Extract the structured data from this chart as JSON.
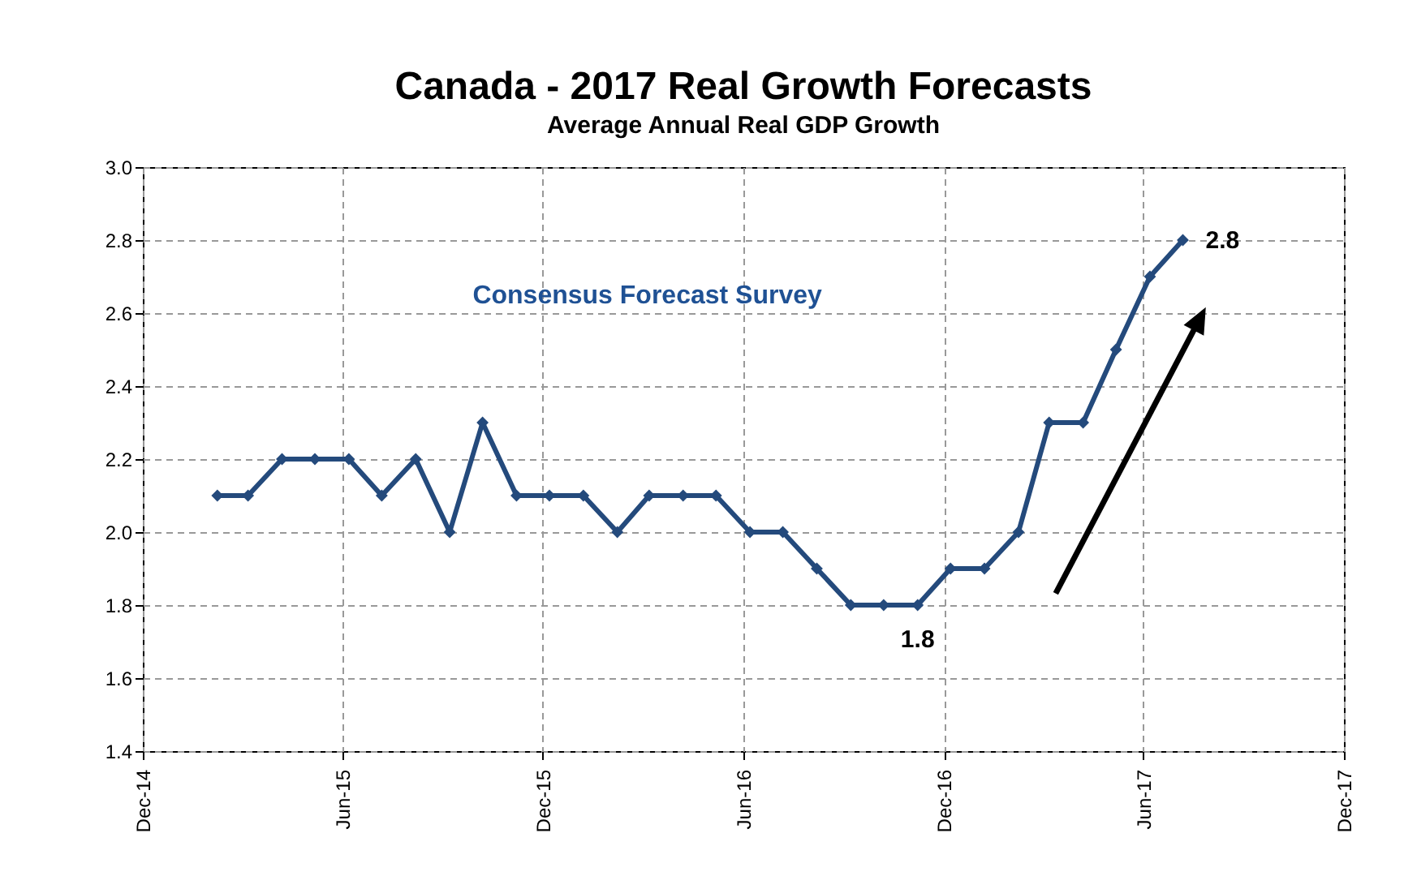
{
  "chart_data": {
    "type": "line",
    "title": "Canada - 2017 Real Growth Forecasts",
    "subtitle": "Average Annual Real GDP Growth",
    "x": [
      "2015-02-07",
      "2015-03-07",
      "2015-04-07",
      "2015-05-07",
      "2015-06-07",
      "2015-07-07",
      "2015-08-07",
      "2015-09-07",
      "2015-10-07",
      "2015-11-07",
      "2015-12-07",
      "2016-01-07",
      "2016-02-07",
      "2016-03-07",
      "2016-04-07",
      "2016-05-07",
      "2016-06-07",
      "2016-07-07",
      "2016-08-07",
      "2016-09-07",
      "2016-10-07",
      "2016-11-07",
      "2016-12-07",
      "2017-01-07",
      "2017-02-07",
      "2017-03-07",
      "2017-04-07",
      "2017-05-07",
      "2017-06-07",
      "2017-07-07"
    ],
    "series": [
      {
        "color": "#244a7c",
        "values": [
          2.1,
          2.1,
          2.2,
          2.2,
          2.2,
          2.1,
          2.2,
          2.0,
          2.3,
          2.1,
          2.1,
          2.1,
          2.0,
          2.1,
          2.1,
          2.1,
          2.0,
          2.0,
          1.9,
          1.8,
          1.8,
          1.8,
          1.9,
          1.9,
          2.0,
          2.3,
          2.3,
          2.5,
          2.7,
          2.8
        ]
      }
    ],
    "xlim": [
      "2014-12-01",
      "2017-12-01"
    ],
    "xticks": [
      {
        "value": "2014-12-01",
        "label": "Dec-14"
      },
      {
        "value": "2015-06-01",
        "label": "Jun-15"
      },
      {
        "value": "2015-12-01",
        "label": "Dec-15"
      },
      {
        "value": "2016-06-01",
        "label": "Jun-16"
      },
      {
        "value": "2016-12-01",
        "label": "Dec-16"
      },
      {
        "value": "2017-06-01",
        "label": "Jun-17"
      },
      {
        "value": "2017-12-01",
        "label": "Dec-17"
      }
    ],
    "ylim": [
      1.4,
      3.0
    ],
    "yticks": [
      {
        "value": 1.4,
        "label": "1.4"
      },
      {
        "value": 1.6,
        "label": "1.6"
      },
      {
        "value": 1.8,
        "label": "1.8"
      },
      {
        "value": 2,
        "label": "2.0"
      },
      {
        "value": 2.2,
        "label": "2.2"
      },
      {
        "value": 2.4,
        "label": "2.4"
      },
      {
        "value": 2.6,
        "label": "2.6"
      },
      {
        "value": 2.8,
        "label": "2.8"
      },
      {
        "value": 3,
        "label": "3.0"
      }
    ],
    "grid": true,
    "marker": "diamond",
    "line_style": "solid",
    "annotations": [
      "Consensus Forecast Survey",
      {
        "text": "1.8",
        "x": "2016-11-07",
        "y": 1.8
      },
      {
        "text": "2.8",
        "x": "2017-07-07",
        "y": 2.8
      }
    ]
  }
}
